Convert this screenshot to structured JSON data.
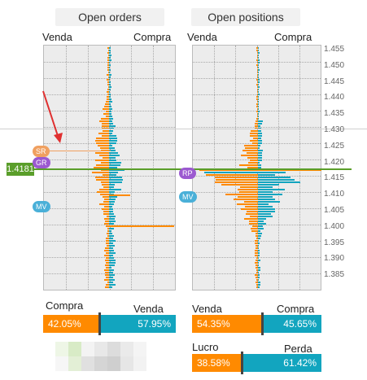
{
  "headers": {
    "open_orders": "Open orders",
    "open_positions": "Open positions"
  },
  "orders_side_labels": {
    "left": "Venda",
    "right": "Compra"
  },
  "positions_side_labels": {
    "left": "Venda",
    "right": "Compra"
  },
  "price_axis": [
    "1.455",
    "1.450",
    "1.445",
    "1.440",
    "1.435",
    "1.430",
    "1.425",
    "1.420",
    "1.415",
    "1.410",
    "1.405",
    "1.400",
    "1.395",
    "1.390",
    "1.385"
  ],
  "current_price": "1.4181",
  "markers": {
    "sr": "SR",
    "gr": "GR",
    "mv_orders": "MV",
    "rp": "RP",
    "mv_positions": "MV"
  },
  "orders_ratio": {
    "label_left": "Compra",
    "label_right": "Venda",
    "left_pct": "42.05%",
    "right_pct": "57.95%",
    "left_value": 42.05
  },
  "positions_ratio": {
    "label_left": "Venda",
    "label_right": "Compra",
    "left_pct": "54.35%",
    "right_pct": "45.65%",
    "left_value": 54.35
  },
  "profit_ratio": {
    "label_left": "Lucro",
    "label_right": "Perda",
    "left_pct": "38.58%",
    "right_pct": "61.42%",
    "left_value": 38.58
  },
  "colors": {
    "orange": "#ff8a00",
    "teal": "#12a5bf",
    "green": "#5a9e2a",
    "panel_bg": "#ececec",
    "marker_orange": "#f0a060",
    "marker_purple": "#9b59d0",
    "marker_teal": "#4ab0d8",
    "arrow_red": "#e03030"
  }
}
